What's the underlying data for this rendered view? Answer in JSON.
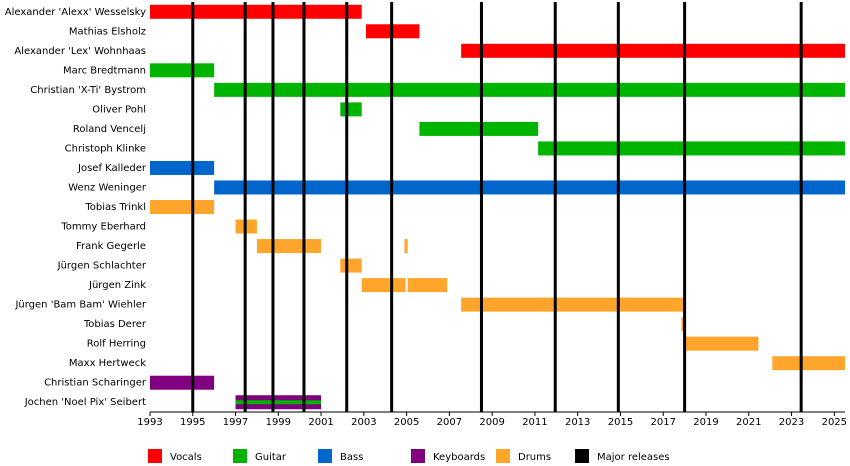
{
  "chart_data": {
    "type": "timeline",
    "categories": [
      "Alexander 'Alexx' Wesselsky",
      "Mathias Elsholz",
      "Alexander 'Lex' Wohnhaas",
      "Marc Bredtmann",
      "Christian 'X-Ti' Bystrom",
      "Oliver Pohl",
      "Roland Vencelj",
      "Christoph Klinke",
      "Josef Kalleder",
      "Wenz Weninger",
      "Tobias Trinkl",
      "Tommy Eberhard",
      "Frank Gegerle",
      "Jürgen Schlachter",
      "Jürgen Zink",
      "Jürgen 'Bam Bam' Wiehler",
      "Tobias Derer",
      "Rolf Herring",
      "Maxx Hertweck",
      "Christian Scharinger",
      "Jochen 'Noel Pix' Seibert"
    ],
    "series": [
      {
        "name": "Vocals",
        "color": "#ff0000",
        "values": [
          [
            [
              1993,
              2002.9
            ]
          ],
          [
            [
              2003.1,
              2005.6
            ]
          ],
          [
            [
              2007.55,
              2025.5
            ]
          ],
          null,
          null,
          null,
          null,
          null,
          null,
          null,
          null,
          null,
          null,
          null,
          null,
          null,
          null,
          null,
          null,
          null,
          null
        ]
      },
      {
        "name": "Guitar",
        "color": "#00b400",
        "values": [
          null,
          null,
          null,
          [
            [
              1993,
              1996
            ]
          ],
          [
            [
              1996,
              2025.5
            ]
          ],
          [
            [
              2001.9,
              2002.9
            ]
          ],
          [
            [
              2005.6,
              2011.15
            ]
          ],
          [
            [
              2011.15,
              2025.5
            ]
          ],
          null,
          null,
          null,
          null,
          null,
          null,
          null,
          null,
          null,
          null,
          null,
          null,
          [
            [
              1997,
              2001
            ]
          ]
        ]
      },
      {
        "name": "Bass",
        "color": "#0066cc",
        "values": [
          null,
          null,
          null,
          null,
          null,
          null,
          null,
          null,
          [
            [
              1993,
              1996
            ]
          ],
          [
            [
              1996,
              2025.5
            ]
          ],
          null,
          null,
          null,
          null,
          null,
          null,
          null,
          null,
          null,
          null,
          null
        ]
      },
      {
        "name": "Keyboards",
        "color": "#800080",
        "values": [
          null,
          null,
          null,
          null,
          null,
          null,
          null,
          null,
          null,
          null,
          null,
          null,
          null,
          null,
          null,
          null,
          null,
          null,
          null,
          [
            [
              1993,
              1996
            ]
          ],
          [
            [
              1997,
              2001
            ]
          ]
        ]
      },
      {
        "name": "Drums",
        "color": "#ffa52c",
        "values": [
          null,
          null,
          null,
          null,
          null,
          null,
          null,
          null,
          null,
          null,
          [
            [
              1993,
              1996
            ]
          ],
          [
            [
              1997,
              1998
            ]
          ],
          [
            [
              1998,
              2001
            ],
            [
              2004.9,
              2005.05
            ]
          ],
          [
            [
              2001.9,
              2002.9
            ]
          ],
          [
            [
              2002.9,
              2004.95
            ],
            [
              2005.05,
              2006.9
            ]
          ],
          [
            [
              2007.55,
              2018
            ]
          ],
          [
            [
              2017.85,
              2018
            ]
          ],
          [
            [
              2018,
              2021.45
            ]
          ],
          [
            [
              2022.1,
              2025.5
            ]
          ],
          null,
          null
        ]
      }
    ],
    "releases": {
      "name": "Major releases",
      "color": "#000000",
      "x": [
        1995,
        1997.45,
        1998.75,
        2000.2,
        2002.2,
        2004.3,
        2008.5,
        2011.95,
        2014.9,
        2018,
        2023.45
      ]
    },
    "xlim": [
      1993,
      2025.5
    ],
    "xticks": [
      1993,
      1995,
      1997,
      1999,
      2001,
      2003,
      2005,
      2007,
      2009,
      2011,
      2013,
      2015,
      2017,
      2019,
      2021,
      2023,
      2025
    ]
  }
}
